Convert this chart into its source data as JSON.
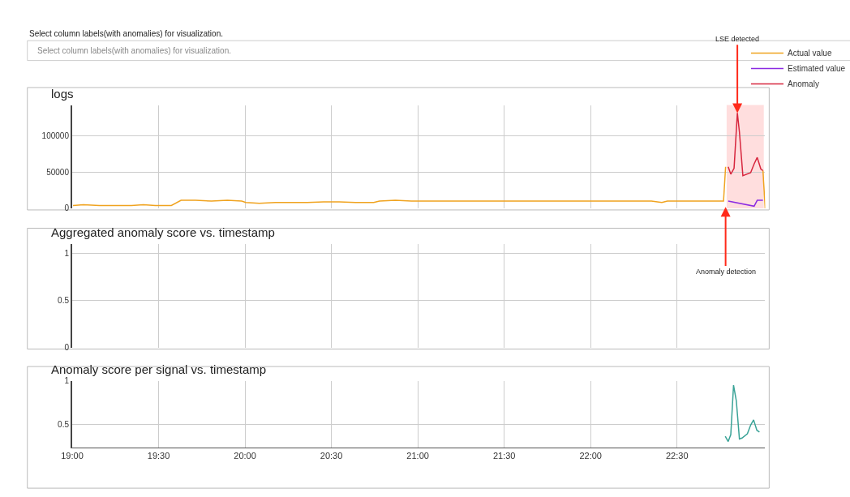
{
  "chart_data": [
    {
      "type": "line",
      "title": "logs",
      "xlim": [
        19.0,
        23.01
      ],
      "xticks": [
        {
          "value": 19,
          "label": null
        },
        {
          "value": 19.5,
          "label": null
        },
        {
          "value": 20,
          "label": null
        },
        {
          "value": 20.5,
          "label": null
        },
        {
          "value": 21,
          "label": null
        },
        {
          "value": 21.5,
          "label": null
        },
        {
          "value": 22,
          "label": null
        },
        {
          "value": 22.5,
          "label": null
        }
      ],
      "ylim": [
        0,
        142000
      ],
      "yticks": [
        0,
        50000,
        100000
      ],
      "tick_labels": "y",
      "grid": true,
      "legend": "top right",
      "marker": "none",
      "line_style": "solid",
      "bands": [
        {
          "axis": "x",
          "from": 22.787,
          "to": 23.002,
          "color": "#ffd6d6"
        }
      ],
      "annotations": [
        "Select column labels(with anomalies) for visualization.",
        "Select column labels(with anomalies) for visualization.",
        {
          "text": "LSE detected",
          "x": 22.849,
          "y": 131000
        },
        {
          "text": "Anomaly detection",
          "x": 22.781,
          "y": 2000
        }
      ],
      "series": [
        {
          "name": "Actual value",
          "color": "#f0a31f",
          "x": [
            19.005,
            19.065,
            19.157,
            19.25,
            19.343,
            19.412,
            19.481,
            19.574,
            19.63,
            19.713,
            19.806,
            19.898,
            19.981,
            20.005,
            20.083,
            20.176,
            20.269,
            20.361,
            20.454,
            20.546,
            20.639,
            20.745,
            20.778,
            20.87,
            20.963,
            21.056,
            21.241,
            21.426,
            21.611,
            21.796,
            21.981,
            22.167,
            22.352,
            22.412,
            22.444,
            22.583,
            22.722,
            22.769,
            22.781,
            22.79,
            22.997,
            23.01
          ],
          "values": [
            4000,
            5000,
            4000,
            4000,
            4000,
            5000,
            4000,
            4000,
            11000,
            11000,
            10000,
            11000,
            10000,
            8000,
            7000,
            8000,
            8000,
            8000,
            9000,
            9000,
            8000,
            8000,
            10000,
            11000,
            10000,
            10000,
            10000,
            10000,
            10000,
            10000,
            10000,
            10000,
            10000,
            8000,
            10000,
            10000,
            10000,
            10000,
            57000,
            null,
            52000,
            0
          ]
        },
        {
          "name": "Estimated value",
          "color": "#8b2be2",
          "x": [
            22.796,
            22.946,
            22.964,
            22.997
          ],
          "values": [
            10000,
            3000,
            11000,
            11000
          ]
        },
        {
          "name": "Anomaly",
          "color": "#d7263d",
          "x": [
            22.796,
            22.811,
            22.83,
            22.849,
            22.861,
            22.881,
            22.926,
            22.946,
            22.964,
            22.985,
            22.997
          ],
          "values": [
            57000,
            47000,
            55000,
            131000,
            105000,
            45000,
            49000,
            61000,
            70000,
            54000,
            52000
          ]
        }
      ]
    },
    {
      "type": "line",
      "title": "Aggregated anomaly score vs. timestamp",
      "xlim": [
        19.0,
        23.01
      ],
      "xticks": [
        {
          "value": 19,
          "label": null
        },
        {
          "value": 19.5,
          "label": null
        },
        {
          "value": 20,
          "label": null
        },
        {
          "value": 20.5,
          "label": null
        },
        {
          "value": 21,
          "label": null
        },
        {
          "value": 21.5,
          "label": null
        },
        {
          "value": 22,
          "label": null
        },
        {
          "value": 22.5,
          "label": null
        }
      ],
      "ylim": [
        0,
        1.1
      ],
      "yticks": [
        0,
        0.5,
        1
      ],
      "tick_labels": "y",
      "grid": true
    },
    {
      "type": "line",
      "title": "Anomaly score per signal vs. timestamp",
      "xlim": [
        19.0,
        23.01
      ],
      "xticks": [
        {
          "value": 19,
          "label": "19:00"
        },
        {
          "value": 19.5,
          "label": "19:30"
        },
        {
          "value": 20,
          "label": "20:00"
        },
        {
          "value": 20.5,
          "label": "20:30"
        },
        {
          "value": 21,
          "label": "21:00"
        },
        {
          "value": 21.5,
          "label": "21:30"
        },
        {
          "value": 22,
          "label": "22:00"
        },
        {
          "value": 22.5,
          "label": "22:30"
        }
      ],
      "ylim": [
        0.23,
        1.0
      ],
      "yticks": [
        0.5,
        1
      ],
      "grid": true,
      "marker": "none",
      "line_style": "solid",
      "series": [
        {
          "color": "#3aa397",
          "x": [
            22.779,
            22.796,
            22.811,
            22.827,
            22.843,
            22.861,
            22.876,
            22.907,
            22.926,
            22.943,
            22.962,
            22.977
          ],
          "values": [
            0.36,
            0.3,
            0.38,
            0.95,
            0.77,
            0.33,
            0.34,
            0.39,
            0.49,
            0.55,
            0.43,
            0.41
          ]
        }
      ]
    }
  ]
}
